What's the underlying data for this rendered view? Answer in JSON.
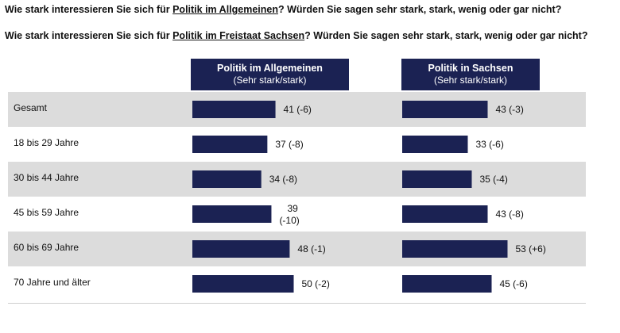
{
  "questions": {
    "q1": {
      "before": "Wie stark interessieren Sie sich für ",
      "underlined": "Politik im Allgemeinen",
      "after": "? Würden Sie sagen sehr stark, stark, wenig oder gar nicht?"
    },
    "q2": {
      "before": "Wie stark interessieren Sie sich für ",
      "underlined": "Politik im Freistaat Sachsen",
      "after": "? Würden Sie sagen sehr stark, stark, wenig oder gar nicht?"
    }
  },
  "columns": [
    {
      "title": "Politik im Allgemeinen",
      "subtitle": "(Sehr stark/stark)"
    },
    {
      "title": "Politik in Sachsen",
      "subtitle": "(Sehr stark/stark)"
    }
  ],
  "colors": {
    "bar": "#1b2253",
    "header": "#1b2253",
    "row_shade": "#dcdcdc"
  },
  "chart_data": {
    "type": "bar",
    "orientation": "horizontal",
    "categories": [
      "Gesamt",
      "18 bis 29 Jahre",
      "30 bis 44 Jahre",
      "45 bis 59 Jahre",
      "60 bis 69 Jahre",
      "70 Jahre und älter"
    ],
    "series": [
      {
        "name": "Politik im Allgemeinen",
        "values": [
          41,
          37,
          34,
          39,
          48,
          50
        ],
        "labels": [
          "41 (-6)",
          "37 (-8)",
          "34 (-8)",
          "39 (-10)",
          "48 (-1)",
          "50 (-2)"
        ]
      },
      {
        "name": "Politik in Sachsen",
        "values": [
          43,
          33,
          35,
          43,
          53,
          45
        ],
        "labels": [
          "43 (-3)",
          "33 (-6)",
          "35 (-4)",
          "43 (-8)",
          "53 (+6)",
          "45 (-6)"
        ]
      }
    ],
    "row_shading": [
      true,
      false,
      true,
      false,
      true,
      false
    ]
  }
}
